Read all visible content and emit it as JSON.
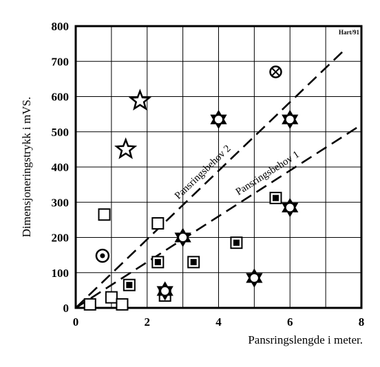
{
  "chart_data": {
    "type": "scatter",
    "xlabel": "Pansringslengde i meter.",
    "ylabel": "Dimensjoneringstrykk i mVS.",
    "xlim": [
      0,
      8
    ],
    "ylim": [
      0,
      800
    ],
    "x_ticks": [
      "0",
      "2",
      "4",
      "6",
      "8"
    ],
    "y_ticks": [
      "0",
      "100",
      "200",
      "300",
      "400",
      "500",
      "600",
      "700",
      "800"
    ],
    "grid": true,
    "credit": "Hart/91",
    "lines": [
      {
        "label": "Pansringsbehov 2",
        "style": "dashed",
        "points": [
          [
            0,
            0
          ],
          [
            7.5,
            730
          ]
        ]
      },
      {
        "label": "Pansringsbehov 1",
        "style": "dashed",
        "points": [
          [
            0,
            0
          ],
          [
            8,
            520
          ]
        ]
      }
    ],
    "series": [
      {
        "marker": "square-open",
        "points": [
          [
            0.4,
            10
          ],
          [
            1.0,
            30
          ],
          [
            1.3,
            10
          ],
          [
            0.8,
            265
          ],
          [
            2.3,
            240
          ],
          [
            2.5,
            35
          ]
        ]
      },
      {
        "marker": "square-dot",
        "points": [
          [
            1.5,
            65
          ],
          [
            2.3,
            130
          ],
          [
            3.3,
            130
          ],
          [
            4.5,
            185
          ],
          [
            5.6,
            312
          ]
        ]
      },
      {
        "marker": "circle-dot",
        "points": [
          [
            0.75,
            148
          ]
        ]
      },
      {
        "marker": "circle-cross",
        "points": [
          [
            5.6,
            670
          ]
        ]
      },
      {
        "marker": "star5-open",
        "points": [
          [
            1.8,
            588
          ],
          [
            1.4,
            450
          ]
        ]
      },
      {
        "marker": "star6-dot",
        "points": [
          [
            2.5,
            48
          ],
          [
            3.0,
            200
          ],
          [
            4.0,
            535
          ],
          [
            5.0,
            85
          ],
          [
            6.0,
            535
          ],
          [
            6.0,
            285
          ]
        ]
      }
    ]
  }
}
